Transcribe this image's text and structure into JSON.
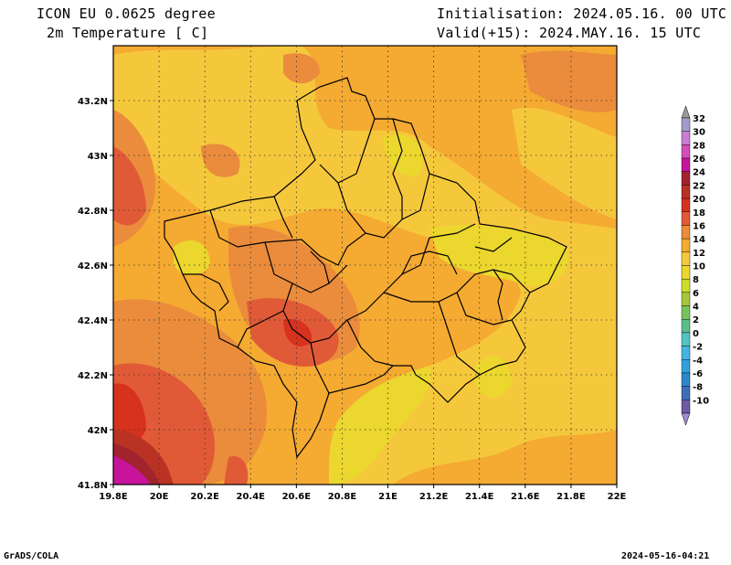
{
  "header": {
    "model": "ICON EU 0.0625 degree",
    "variable": "2m Temperature [ C]",
    "init": "Initialisation: 2024.05.16. 00 UTC",
    "valid": "Valid(+15): 2024.MAY.16. 15 UTC"
  },
  "footer": {
    "left": "GrADS/COLA",
    "right": "2024-05-16-04:21"
  },
  "map": {
    "lon_range": [
      19.8,
      22.0
    ],
    "lat_range": [
      41.8,
      43.4
    ],
    "lon_ticks": [
      {
        "v": 19.8,
        "label": "19.8E"
      },
      {
        "v": 20.0,
        "label": "20E"
      },
      {
        "v": 20.2,
        "label": "20.2E"
      },
      {
        "v": 20.4,
        "label": "20.4E"
      },
      {
        "v": 20.6,
        "label": "20.6E"
      },
      {
        "v": 20.8,
        "label": "20.8E"
      },
      {
        "v": 21.0,
        "label": "21E"
      },
      {
        "v": 21.2,
        "label": "21.2E"
      },
      {
        "v": 21.4,
        "label": "21.4E"
      },
      {
        "v": 21.6,
        "label": "21.6E"
      },
      {
        "v": 21.8,
        "label": "21.8E"
      },
      {
        "v": 22.0,
        "label": "22E"
      }
    ],
    "lat_ticks": [
      {
        "v": 41.8,
        "label": "41.8N"
      },
      {
        "v": 42.0,
        "label": "42N"
      },
      {
        "v": 42.2,
        "label": "42.2N"
      },
      {
        "v": 42.4,
        "label": "42.4N"
      },
      {
        "v": 42.6,
        "label": "42.6N"
      },
      {
        "v": 42.8,
        "label": "42.8N"
      },
      {
        "v": 43.0,
        "label": "43N"
      },
      {
        "v": 43.2,
        "label": "43.2N"
      }
    ],
    "grid": true
  },
  "colorbar": {
    "levels": [
      {
        "label": "32",
        "color": "#a39bc9"
      },
      {
        "label": "30",
        "color": "#c87ed2"
      },
      {
        "label": "28",
        "color": "#d24fb9"
      },
      {
        "label": "26",
        "color": "#c8149b"
      },
      {
        "label": "24",
        "color": "#a0232d"
      },
      {
        "label": "22",
        "color": "#b93223"
      },
      {
        "label": "20",
        "color": "#d7321e"
      },
      {
        "label": "18",
        "color": "#e15a37"
      },
      {
        "label": "16",
        "color": "#ea8c3c"
      },
      {
        "label": "14",
        "color": "#f5aa32"
      },
      {
        "label": "12",
        "color": "#f5c83c"
      },
      {
        "label": "10",
        "color": "#ebd72d"
      },
      {
        "label": "8",
        "color": "#cddc2d"
      },
      {
        "label": "6",
        "color": "#a5c83c"
      },
      {
        "label": "4",
        "color": "#78c35a"
      },
      {
        "label": "2",
        "color": "#5abe8c"
      },
      {
        "label": "0",
        "color": "#55c3c3"
      },
      {
        "label": "-2",
        "color": "#46b4e1"
      },
      {
        "label": "-4",
        "color": "#32a0dc"
      },
      {
        "label": "-6",
        "color": "#2d87c8"
      },
      {
        "label": "-8",
        "color": "#3c6eb9"
      },
      {
        "label": "-10",
        "color": "#6e5aa5"
      }
    ],
    "top_arrow_color": "#9b9b9b",
    "bottom_arrow_color": "#a08cd2"
  }
}
